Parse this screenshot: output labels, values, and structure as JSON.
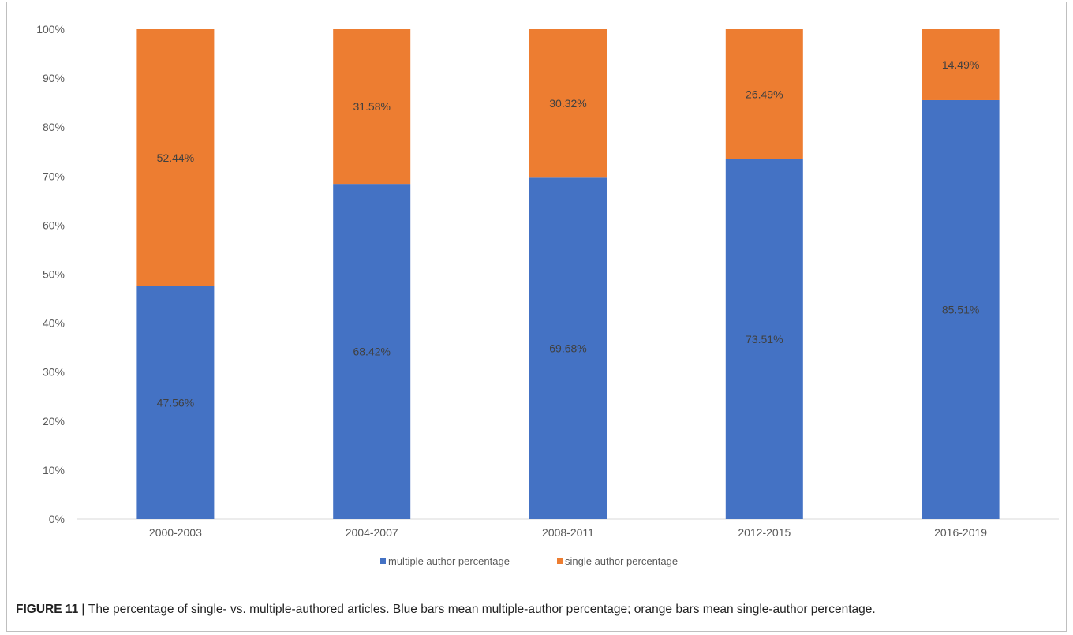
{
  "chart_data": {
    "type": "bar",
    "stacked": true,
    "categories": [
      "2000-2003",
      "2004-2007",
      "2008-2011",
      "2012-2015",
      "2016-2019"
    ],
    "series": [
      {
        "name": "multiple author percentage",
        "color": "#4472C4",
        "values": [
          47.56,
          68.42,
          69.68,
          73.51,
          85.51
        ],
        "labels": [
          "47.56%",
          "68.42%",
          "69.68%",
          "73.51%",
          "85.51%"
        ]
      },
      {
        "name": "single author percentage",
        "color": "#ED7D31",
        "values": [
          52.44,
          31.58,
          30.32,
          26.49,
          14.49
        ],
        "labels": [
          "52.44%",
          "31.58%",
          "30.32%",
          "26.49%",
          "14.49%"
        ]
      }
    ],
    "yticks": [
      "0%",
      "10%",
      "20%",
      "30%",
      "40%",
      "50%",
      "60%",
      "70%",
      "80%",
      "90%",
      "100%"
    ],
    "ylim": [
      0,
      100
    ],
    "legend_position": "bottom",
    "grid": false
  },
  "caption": {
    "label": "FIGURE 11 |",
    "text": " The percentage of single- vs. multiple-authored articles. Blue bars mean multiple-author percentage; orange bars mean single-author percentage."
  }
}
